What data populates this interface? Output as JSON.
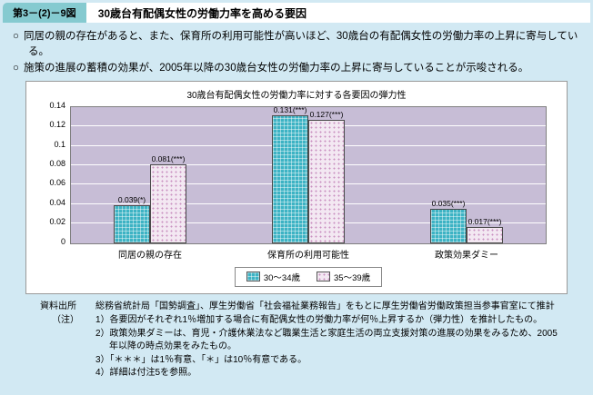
{
  "header": {
    "figure_label": "第3－(2)－9図",
    "title": "30歳台有配偶女性の労働力率を高める要因"
  },
  "bullets": [
    {
      "marker": "○",
      "text": "同居の親の存在があると、また、保育所の利用可能性が高いほど、30歳台の有配偶女性の労働力率の上昇に寄与している。"
    },
    {
      "marker": "○",
      "text": "施策の進展の蓄積の効果が、2005年以降の30歳台女性の労働力率の上昇に寄与していることが示唆される。"
    }
  ],
  "chart_data": {
    "type": "bar",
    "title": "30歳台有配偶女性の労働力率に対する各要因の弾力性",
    "categories": [
      "同居の親の存在",
      "保育所の利用可能性",
      "政策効果ダミー"
    ],
    "series": [
      {
        "name": "30～34歳",
        "values": [
          0.039,
          0.131,
          0.035
        ],
        "labels": [
          "0.039(*)",
          "0.131(***)",
          "0.035(***)"
        ],
        "color": "#3db3c4"
      },
      {
        "name": "35～39歳",
        "values": [
          0.081,
          0.127,
          0.017
        ],
        "labels": [
          "0.081(***)",
          "0.127(***)",
          "0.017(***)"
        ],
        "color": "#f3e8f2"
      }
    ],
    "ylim": [
      0,
      0.14
    ],
    "ytick_step": 0.02,
    "yticks": [
      "0",
      "0.02",
      "0.04",
      "0.06",
      "0.08",
      "0.1",
      "0.12",
      "0.14"
    ],
    "grid": true,
    "legend_position": "bottom"
  },
  "source": {
    "label": "資料出所",
    "text": "総務省統計局「国勢調査」、厚生労働省「社会福祉業務報告」をもとに厚生労働省労働政策担当参事官室にて推計"
  },
  "notes": {
    "label": "（注）",
    "items": [
      "1）各要因がそれぞれ1％増加する場合に有配偶女性の労働力率が何％上昇するか（弾力性）を推計したもの。",
      "2）政策効果ダミーは、育児・介護休業法など職業生活と家庭生活の両立支援対策の進展の効果をみるため、2005年以降の時点効果をみたもの。",
      "3）「＊＊＊」は1％有意、「＊」は10％有意である。",
      "4）詳細は付注5を参照。"
    ]
  },
  "colors": {
    "page_bg": "#d2e9f3",
    "header_label_bg": "#85cad0",
    "plot_bg": "#c7bdd6",
    "series1": "#3db3c4",
    "series2": "#f3e8f2",
    "series2_dot": "#c98fc0"
  }
}
